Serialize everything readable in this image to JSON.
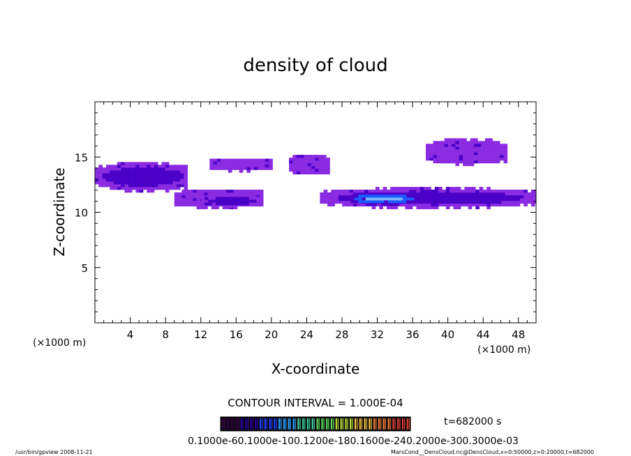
{
  "chart_data": {
    "type": "heatmap",
    "title": "density of cloud",
    "xlabel": "X-coordinate",
    "ylabel": "Z-coordinate",
    "x_unit_left": "(×1000 m)",
    "x_unit_right": "(×1000 m)",
    "xlim": [
      0,
      50
    ],
    "ylim": [
      0,
      20
    ],
    "xticks": [
      4,
      8,
      12,
      16,
      20,
      24,
      28,
      32,
      36,
      40,
      44,
      48
    ],
    "yticks": [
      5,
      10,
      15
    ],
    "contour_interval_text": "CONTOUR INTERVAL = 1.000E-04",
    "time_text": "t=682000 s",
    "colorbar_text": "0.1000e-60.1000e-100.1200e-180.1600e-240.2000e-300.3000e-03",
    "footer_left": "/usr/bin/gpview   2008-11-21",
    "footer_right": "MarsCond__DensCloud.nc@DensCloud,x=0:50000,z=0:20000,t=682000",
    "colors": {
      "low": "#8a2be2",
      "mid": "#4b00c8",
      "high": "#1e5bff",
      "peak": "#7fb8ff"
    },
    "cloud_regions": [
      {
        "name": "upper-left band",
        "x": [
          0,
          10.5
        ],
        "z": [
          11.8,
          14.4
        ],
        "level": "mid"
      },
      {
        "name": "left tail",
        "x": [
          9,
          19
        ],
        "z": [
          10.3,
          12.0
        ],
        "level": "low"
      },
      {
        "name": "left core",
        "x": [
          12,
          18.5
        ],
        "z": [
          10.4,
          11.4
        ],
        "level": "mid"
      },
      {
        "name": "upper mid patch",
        "x": [
          13,
          20
        ],
        "z": [
          13.6,
          14.8
        ],
        "level": "low"
      },
      {
        "name": "small patch",
        "x": [
          22,
          26.5
        ],
        "z": [
          13.2,
          15.1
        ],
        "level": "low"
      },
      {
        "name": "right band",
        "x": [
          25.5,
          50
        ],
        "z": [
          10.3,
          12.1
        ],
        "level": "mid"
      },
      {
        "name": "right core",
        "x": [
          29,
          36
        ],
        "z": [
          10.6,
          11.6
        ],
        "level": "high"
      },
      {
        "name": "upper right patch",
        "x": [
          37.5,
          46.5
        ],
        "z": [
          14.2,
          16.5
        ],
        "level": "low"
      }
    ]
  }
}
